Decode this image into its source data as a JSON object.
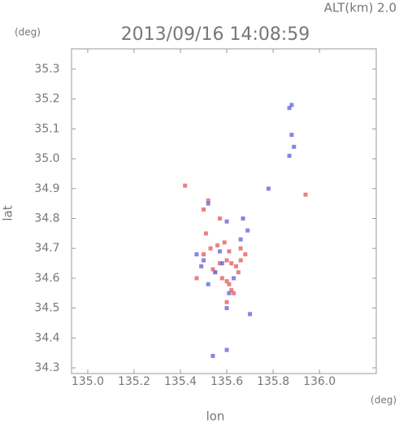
{
  "chart_data": {
    "type": "scatter",
    "title": "2013/09/16 14:08:59",
    "altitude_label": "ALT(km) 2.0",
    "y_unit": "(deg)",
    "x_unit": "(deg)",
    "x_label": "lon",
    "y_label": "lat",
    "xlim": [
      134.93,
      136.245
    ],
    "ylim": [
      34.281,
      35.368
    ],
    "xticks": [
      {
        "value": 135,
        "label": "135.0"
      },
      135.2,
      135.4,
      135.6,
      135.8,
      {
        "value": 136,
        "label": "136.0"
      }
    ],
    "yticks": [
      35.3,
      35.2,
      35.1,
      {
        "value": 35,
        "label": "35.0"
      },
      34.9,
      34.8,
      34.7,
      34.6,
      34.5,
      34.4,
      34.3
    ],
    "series": [
      {
        "color": "#e86a6a",
        "x": [
          135.52,
          135.5,
          135.57,
          135.6,
          135.62,
          135.64,
          135.66,
          135.55,
          135.58,
          135.61,
          135.63,
          135.5,
          135.53,
          135.56,
          135.59,
          135.65,
          135.6,
          135.62,
          135.57,
          135.54,
          135.61,
          135.68,
          135.94,
          135.51,
          135.6,
          135.42,
          135.47,
          135.66
        ],
        "values": [
          34.86,
          34.83,
          34.8,
          34.66,
          34.65,
          34.64,
          34.66,
          34.62,
          34.6,
          34.58,
          34.55,
          34.68,
          34.7,
          34.71,
          34.72,
          34.62,
          34.52,
          34.56,
          34.65,
          34.63,
          34.69,
          34.68,
          34.88,
          34.75,
          34.59,
          34.91,
          34.6,
          34.7
        ]
      },
      {
        "color": "#7070e0",
        "x": [
          135.88,
          135.87,
          135.88,
          135.89,
          135.87,
          135.78,
          135.52,
          135.6,
          135.69,
          135.5,
          135.55,
          135.58,
          135.63,
          135.47,
          135.52,
          135.6,
          135.61,
          135.7,
          135.66,
          135.57,
          135.49,
          135.6,
          135.54,
          135.67
        ],
        "values": [
          35.18,
          35.17,
          35.08,
          35.04,
          35.01,
          34.9,
          34.85,
          34.79,
          34.76,
          34.66,
          34.62,
          34.65,
          34.6,
          34.68,
          34.58,
          34.5,
          34.55,
          34.48,
          34.73,
          34.69,
          34.64,
          34.36,
          34.34,
          34.8
        ]
      }
    ]
  }
}
